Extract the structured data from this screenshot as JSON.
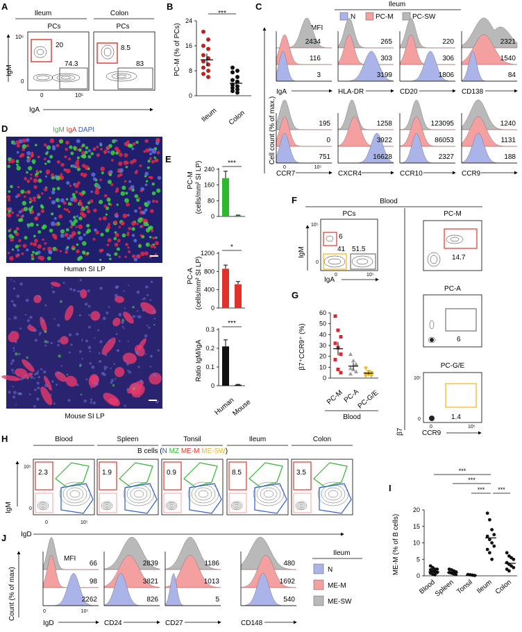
{
  "panels": {
    "A": "A",
    "B": "B",
    "C": "C",
    "D": "D",
    "E": "E",
    "F": "F",
    "G": "G",
    "H": "H",
    "I": "I",
    "J": "J"
  },
  "a": {
    "groups": [
      "Ileum",
      "Colon"
    ],
    "gate_title": "PCs",
    "ylab": "IgM",
    "xlab": "IgA",
    "ticks": [
      "10⁵",
      "0",
      "0",
      "10⁵"
    ],
    "ileum": {
      "igm": "20",
      "iga": "74.3"
    },
    "colon": {
      "igm": "8.5",
      "iga": "83"
    }
  },
  "b": {
    "ylabel": "PC-M (% of PCs)",
    "yticks": [
      "0",
      "8",
      "16",
      "24"
    ],
    "cats": [
      "Ileum",
      "Colon"
    ],
    "sig": "***"
  },
  "c": {
    "header": "Ileum",
    "legend": [
      "N",
      "PC-M",
      "PC-SW"
    ],
    "mfi": "MFI",
    "ylabel": "Cell count (% of max.)",
    "x0": "0",
    "x1": "10⁵",
    "row1": [
      {
        "m": "IgA",
        "v": [
          "2434",
          "116",
          "3"
        ]
      },
      {
        "m": "HLA-DR",
        "v": [
          "265",
          "303",
          "3199"
        ]
      },
      {
        "m": "CD20",
        "v": [
          "220",
          "306",
          "1806"
        ]
      },
      {
        "m": "CD138",
        "v": [
          "2321",
          "1540",
          "84"
        ]
      }
    ],
    "row2": [
      {
        "m": "CCR7",
        "v": [
          "195",
          "0",
          "751"
        ]
      },
      {
        "m": "CXCR4",
        "v": [
          "1258",
          "3922",
          "16628"
        ]
      },
      {
        "m": "CCR10",
        "v": [
          "123095",
          "86053",
          "2327"
        ]
      },
      {
        "m": "CCR9",
        "v": [
          "1240",
          "1131",
          "188"
        ]
      }
    ]
  },
  "d": {
    "legend": [
      "IgM",
      "IgA",
      "DAPI"
    ],
    "cap1": "Human SI LP",
    "cap2": "Mouse SI LP"
  },
  "e": {
    "y1": "PC-M",
    "u1": "(cells/mm² SI LP)",
    "t1": [
      "0",
      "80",
      "160",
      "240"
    ],
    "y2": "PC-A",
    "u2": "(cells/mm² SI LP)",
    "t2": [
      "0",
      "400",
      "800",
      "1200"
    ],
    "y3": "Ratio IgM/IgA",
    "t3": [
      "0",
      "0.1",
      "0.2",
      "0.3"
    ],
    "cats": [
      "Human",
      "Mouse"
    ],
    "sig": [
      "***",
      "*",
      "***"
    ]
  },
  "f": {
    "header": "Blood",
    "pcs": "PCs",
    "ylab": "IgM",
    "xlab": "IgA",
    "g1": "6",
    "g2": "41",
    "g3": "51.5",
    "pcm": "PC-M",
    "pcm_v": "14.7",
    "pca": "PC-A",
    "pca_v": "6",
    "pcge": "PC-G/E",
    "pcge_v": "1.4",
    "ylab2": "β7",
    "xlab2": "CCR9"
  },
  "g": {
    "ylabel": "β7⁺CCR9⁺ (%)",
    "yticks": [
      "0",
      "10",
      "20",
      "30",
      "40",
      "50",
      "60"
    ],
    "cats": [
      "PC-M",
      "PC-A",
      "PC-G/E"
    ],
    "group": "Blood"
  },
  "h": {
    "groups": [
      "Blood",
      "Spleen",
      "Tonsil",
      "Ileum",
      "Colon"
    ],
    "vals": [
      "2.3",
      "1.9",
      "0.9",
      "8.5",
      "3.5"
    ],
    "bcells": "B cells (",
    "paren": ")",
    "subsets": [
      "N",
      "MZ",
      "ME-M",
      "ME-SW"
    ],
    "ylab": "IgM",
    "xlab": "IgD"
  },
  "i": {
    "ylabel": "ME-M (% of B cells)",
    "yticks": [
      "0",
      "5",
      "10",
      "15",
      "20"
    ],
    "cats": [
      "Blood",
      "Spleen",
      "Tonsil",
      "Ileum",
      "Colon"
    ],
    "sig": [
      "***",
      "***",
      "***",
      "***"
    ]
  },
  "j": {
    "mfi": "MFI",
    "ylabel": "Count (% of max)",
    "markers": [
      {
        "m": "IgD",
        "v": [
          "66",
          "98",
          "2262"
        ]
      },
      {
        "m": "CD24",
        "v": [
          "2839",
          "3821",
          "826"
        ]
      },
      {
        "m": "CD27",
        "v": [
          "1186",
          "1013",
          "5"
        ]
      },
      {
        "m": "CD148",
        "v": [
          "480",
          "1692",
          "540"
        ]
      }
    ],
    "legend_title": "Ileum",
    "legend": [
      "N",
      "ME-M",
      "ME-SW"
    ]
  },
  "colors": {
    "N": "#aab4e8",
    "M": "#f4a0a0",
    "SW": "#b9b9b9",
    "red": "#e0322b",
    "green": "#2eb82e",
    "blue": "#2a5bd7",
    "orange": "#f2b515"
  }
}
